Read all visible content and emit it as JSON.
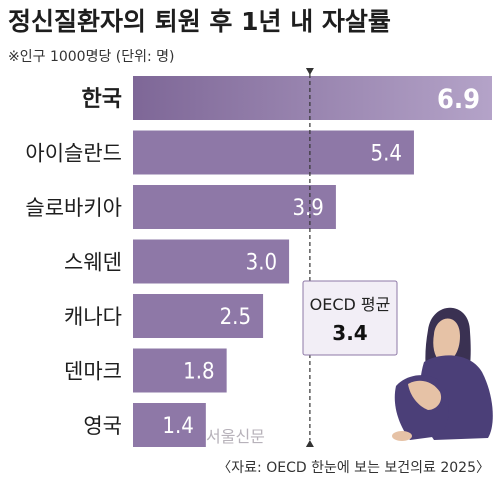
{
  "chart_data": {
    "type": "bar",
    "orientation": "horizontal",
    "title": "정신질환자의 퇴원 후 1년 내 자살률",
    "subtitle": "※인구 1000명당 (단위: 명)",
    "categories": [
      "한국",
      "아이슬란드",
      "슬로바키아",
      "스웨덴",
      "캐나다",
      "덴마크",
      "영국"
    ],
    "values": [
      6.9,
      5.4,
      3.9,
      3.0,
      2.5,
      1.8,
      1.4
    ],
    "value_labels": [
      "6.9",
      "5.4",
      "3.9",
      "3.0",
      "2.5",
      "1.8",
      "1.4"
    ],
    "highlight_index": 0,
    "xlim": [
      0,
      6.9
    ],
    "reference_line": {
      "label": "OECD 평균",
      "value": 3.4,
      "value_label": "3.4"
    },
    "source": "〈자료: OECD 한눈에 보는 보건의료 2025〉",
    "watermark": "서울신문",
    "colors": {
      "bar": "#8e78a7",
      "bar_highlight": "#7e6797",
      "bar_highlight_light": "#b4a3c8",
      "reference_line": "#333333",
      "oecd_box_bg": "#f2eef6",
      "oecd_box_border": "#8e78a7",
      "figure_hair": "#3a3152",
      "figure_clothes": "#4b3f78",
      "figure_skin": "#e6c2a6"
    },
    "grid": false,
    "legend": "none"
  }
}
